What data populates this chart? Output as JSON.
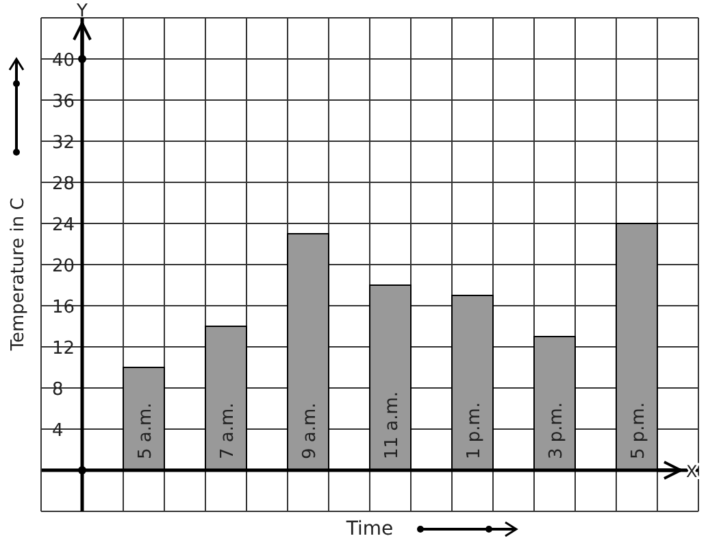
{
  "chart_data": {
    "type": "bar",
    "xlabel": "Time",
    "ylabel": "Temperature in C",
    "annotations": [
      "X",
      "Y"
    ],
    "categories": [
      "5 a.m.",
      "7 a.m.",
      "9 a.m.",
      "11 a.m.",
      "1 p.m.",
      "3 p.m.",
      "5 p.m."
    ],
    "values": [
      10,
      14,
      23,
      18,
      17,
      13,
      24
    ],
    "color": "#999999",
    "ylim": [
      -4,
      44
    ],
    "yticks": [
      4,
      8,
      12,
      16,
      20,
      24,
      28,
      32,
      36,
      40
    ],
    "grid": true
  }
}
